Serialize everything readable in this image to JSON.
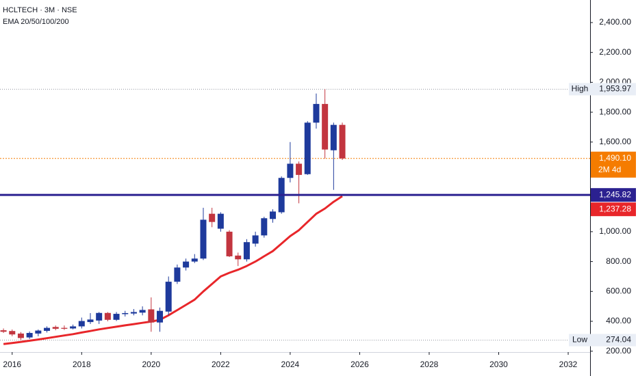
{
  "chart_data": {
    "type": "candlestick",
    "title": "HCLTECH · 3M · NSE",
    "subtitle": "EMA 20/50/100/200",
    "x": [
      2015.75,
      2016,
      2016.25,
      2016.5,
      2016.75,
      2017,
      2017.25,
      2017.5,
      2017.75,
      2018,
      2018.25,
      2018.5,
      2018.75,
      2019,
      2019.25,
      2019.5,
      2019.75,
      2020,
      2020.25,
      2020.5,
      2020.75,
      2021,
      2021.25,
      2021.5,
      2021.75,
      2022,
      2022.25,
      2022.5,
      2022.75,
      2023,
      2023.25,
      2023.5,
      2023.75,
      2024,
      2024.25,
      2024.5,
      2024.75,
      2025,
      2025.25,
      2025.5
    ],
    "open": [
      340,
      335,
      318,
      292,
      318,
      336,
      362,
      356,
      352,
      366,
      395,
      405,
      456,
      410,
      448,
      452,
      458,
      480,
      392,
      465,
      665,
      760,
      800,
      820,
      1120,
      1020,
      1000,
      840,
      815,
      920,
      975,
      1085,
      1130,
      1360,
      1455,
      1385,
      1730,
      1855,
      1545,
      1715
    ],
    "high": [
      352,
      345,
      328,
      332,
      345,
      366,
      372,
      372,
      378,
      425,
      455,
      462,
      462,
      462,
      470,
      482,
      500,
      560,
      492,
      700,
      780,
      820,
      850,
      1160,
      1160,
      1130,
      1010,
      860,
      950,
      1000,
      1100,
      1150,
      1370,
      1600,
      1470,
      1740,
      1925,
      1953.97,
      1730,
      1730
    ],
    "low": [
      322,
      300,
      276,
      282,
      300,
      325,
      340,
      342,
      346,
      352,
      382,
      382,
      400,
      402,
      432,
      440,
      440,
      330,
      330,
      440,
      650,
      740,
      790,
      810,
      1030,
      1000,
      830,
      770,
      800,
      900,
      960,
      1060,
      1120,
      1330,
      1190,
      1380,
      1690,
      1490,
      1280,
      1480
    ],
    "close": [
      330,
      312,
      288,
      322,
      338,
      356,
      350,
      350,
      366,
      402,
      412,
      456,
      410,
      450,
      455,
      462,
      476,
      392,
      470,
      665,
      760,
      800,
      820,
      1080,
      1065,
      1120,
      835,
      815,
      930,
      975,
      1090,
      1135,
      1360,
      1455,
      1380,
      1730,
      1855,
      1550,
      1715,
      1490.1
    ],
    "up_color": "#1e3a9c",
    "down_color": "#c2353f",
    "ema": {
      "color": "#e8262a",
      "values": [
        248,
        255,
        262,
        270,
        278,
        287,
        296,
        305,
        314,
        325,
        335,
        346,
        355,
        364,
        373,
        381,
        390,
        398,
        410,
        440,
        475,
        510,
        545,
        600,
        650,
        700,
        725,
        745,
        770,
        800,
        835,
        870,
        920,
        970,
        1010,
        1065,
        1120,
        1155,
        1200,
        1237.28
      ],
      "last_label": "1,237.28"
    },
    "xlim": [
      2015.65,
      2032.63
    ],
    "ylim": [
      194,
      2551
    ],
    "xticks": [
      2016,
      2018,
      2020,
      2022,
      2024,
      2026,
      2028,
      2030,
      2032
    ],
    "yticks": [
      {
        "value": 200,
        "label": "200.00"
      },
      {
        "value": 400,
        "label": "400.00"
      },
      {
        "value": 600,
        "label": "600.00"
      },
      {
        "value": 800,
        "label": "800.00"
      },
      {
        "value": 1000,
        "label": "1,000.00"
      },
      {
        "value": 1600,
        "label": "1,600.00"
      },
      {
        "value": 1800,
        "label": "1,800.00"
      },
      {
        "value": 2000,
        "label": "2,000.00"
      },
      {
        "value": 2200,
        "label": "2,200.00"
      },
      {
        "value": 2400,
        "label": "2,400.00"
      }
    ],
    "high_line": {
      "name": "High",
      "value": 1953.97,
      "label": "1,953.97"
    },
    "low_line": {
      "name": "Low",
      "value": 274.04,
      "label": "274.04"
    },
    "last_price": {
      "value": 1490.1,
      "label": "1,490.10",
      "countdown": "2M 4d",
      "color": "#f57c00"
    },
    "price_line": {
      "value": 1245.82,
      "label": "1,245.82",
      "color": "#2b2190"
    }
  }
}
